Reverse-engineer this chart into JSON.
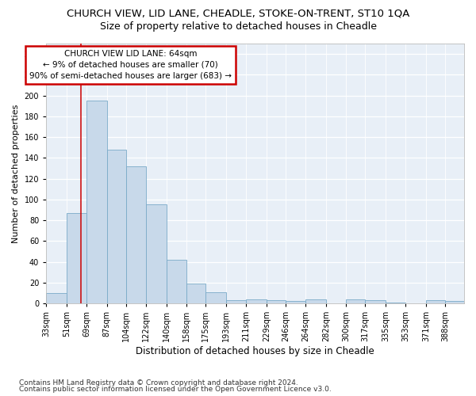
{
  "title": "CHURCH VIEW, LID LANE, CHEADLE, STOKE-ON-TRENT, ST10 1QA",
  "subtitle": "Size of property relative to detached houses in Cheadle",
  "xlabel": "Distribution of detached houses by size in Cheadle",
  "ylabel": "Number of detached properties",
  "bar_color": "#c8d9ea",
  "bar_edge_color": "#7aaac8",
  "annotation_text": "CHURCH VIEW LID LANE: 64sqm\n← 9% of detached houses are smaller (70)\n90% of semi-detached houses are larger (683) →",
  "annotation_box_color": "#ffffff",
  "annotation_box_edge_color": "#cc0000",
  "red_line_x": 64,
  "categories": [
    "33sqm",
    "51sqm",
    "69sqm",
    "87sqm",
    "104sqm",
    "122sqm",
    "140sqm",
    "158sqm",
    "175sqm",
    "193sqm",
    "211sqm",
    "229sqm",
    "246sqm",
    "264sqm",
    "282sqm",
    "300sqm",
    "317sqm",
    "335sqm",
    "353sqm",
    "371sqm",
    "388sqm"
  ],
  "bin_edges": [
    33,
    51,
    69,
    87,
    104,
    122,
    140,
    158,
    175,
    193,
    211,
    229,
    246,
    264,
    282,
    300,
    317,
    335,
    353,
    371,
    388
  ],
  "bin_width": 18,
  "values": [
    10,
    87,
    195,
    148,
    132,
    95,
    42,
    19,
    11,
    3,
    4,
    3,
    2,
    4,
    0,
    4,
    3,
    1,
    0,
    3,
    2
  ],
  "ylim": [
    0,
    250
  ],
  "yticks": [
    0,
    20,
    40,
    60,
    80,
    100,
    120,
    140,
    160,
    180,
    200,
    220,
    240
  ],
  "plot_bg_color": "#e8eff7",
  "grid_color": "#ffffff",
  "footnote_line1": "Contains HM Land Registry data © Crown copyright and database right 2024.",
  "footnote_line2": "Contains public sector information licensed under the Open Government Licence v3.0.",
  "title_fontsize": 9.5,
  "subtitle_fontsize": 9,
  "xlabel_fontsize": 8.5,
  "ylabel_fontsize": 8,
  "tick_fontsize": 7,
  "annot_fontsize": 7.5,
  "footnote_fontsize": 6.5
}
